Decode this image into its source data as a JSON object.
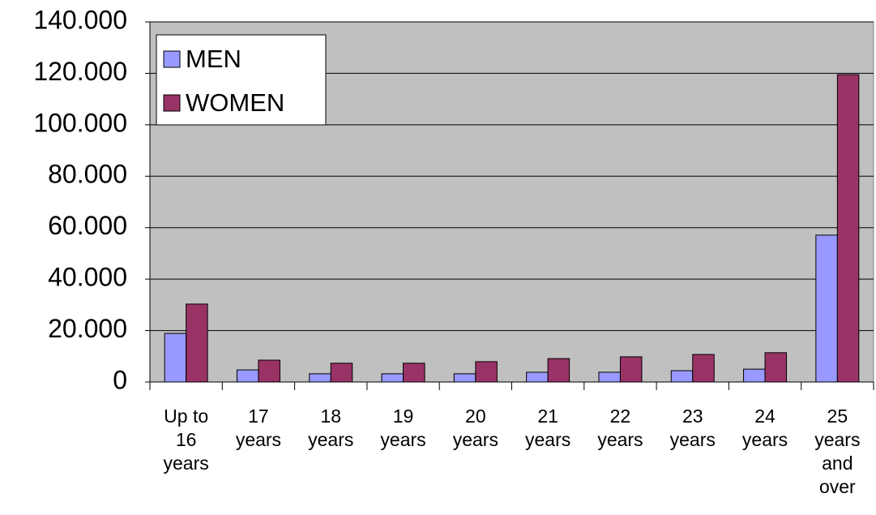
{
  "chart_data": {
    "type": "bar",
    "categories": [
      "Up to 16 years",
      "17 years",
      "18 years",
      "19 years",
      "20 years",
      "21 years",
      "22 years",
      "23 years",
      "24 years",
      "25 years and over"
    ],
    "series": [
      {
        "name": "MEN",
        "color": "#9999ff",
        "values": [
          18900,
          4700,
          3200,
          3200,
          3200,
          3800,
          3800,
          4400,
          5000,
          57100
        ]
      },
      {
        "name": "WOMEN",
        "color": "#993366",
        "values": [
          30300,
          8500,
          7300,
          7300,
          7900,
          9100,
          9800,
          10700,
          11400,
          119500
        ]
      }
    ],
    "ylim": [
      0,
      140000
    ],
    "yticks": [
      0,
      {
        "value": 20000,
        "label": "20.000"
      },
      {
        "value": 40000,
        "label": "40.000"
      },
      {
        "value": 60000,
        "label": "60.000"
      },
      {
        "value": 80000,
        "label": "80.000"
      },
      {
        "value": 100000,
        "label": "100.000"
      },
      {
        "value": 120000,
        "label": "120.000"
      },
      {
        "value": 140000,
        "label": "140.000"
      }
    ],
    "grid": true,
    "legend": "top-left",
    "plot_background": "#c0c0c0"
  }
}
